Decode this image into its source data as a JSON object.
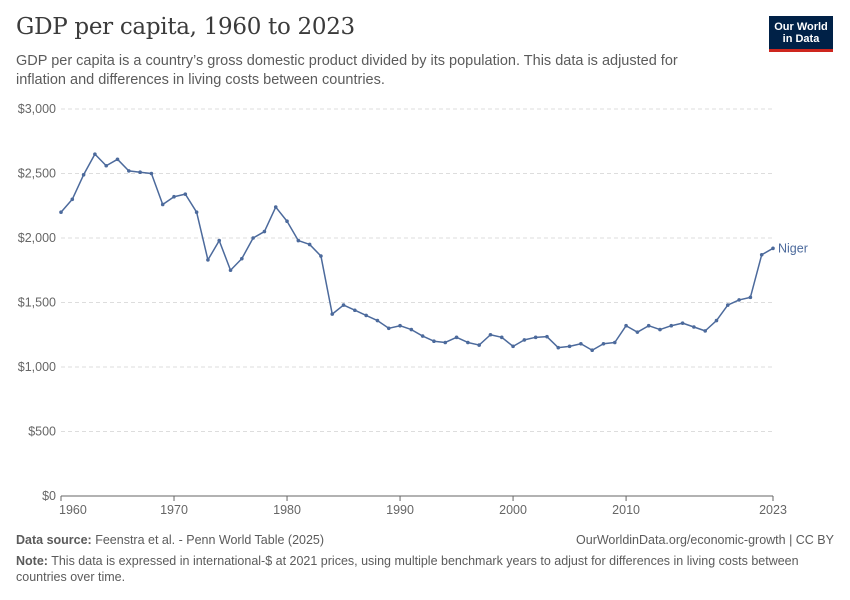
{
  "header": {
    "title": "GDP per capita, 1960 to 2023",
    "subtitle": "GDP per capita is a country’s gross domestic product divided by its population. This data is adjusted for inflation and differences in living costs between countries.",
    "logo_line1": "Our World",
    "logo_line2": "in Data"
  },
  "footer": {
    "source_label": "Data source:",
    "source_text": "Feenstra et al. - Penn World Table (2025)",
    "url": "OurWorldinData.org/economic-growth | CC BY",
    "note_label": "Note:",
    "note_text": "This data is expressed in international-$ at 2021 prices, using multiple benchmark years to adjust for differences in living costs between countries over time."
  },
  "colors": {
    "series": "#4c6a9c",
    "grid": "#dddddd",
    "axis": "#666666"
  },
  "chart_data": {
    "type": "line",
    "title": "GDP per capita, 1960 to 2023",
    "xlabel": "",
    "ylabel": "",
    "xlim": [
      1960,
      2023
    ],
    "ylim": [
      0,
      3000
    ],
    "yticks": [
      0,
      500,
      1000,
      1500,
      2000,
      2500,
      3000
    ],
    "ytick_labels": [
      "$0",
      "$500",
      "$1,000",
      "$1,500",
      "$2,000",
      "$2,500",
      "$3,000"
    ],
    "xticks": [
      1960,
      1970,
      1980,
      1990,
      2000,
      2010,
      2023
    ],
    "xtick_labels": [
      "1960",
      "1970",
      "1980",
      "1990",
      "2000",
      "2010",
      "2023"
    ],
    "grid": "horizontal-dashed",
    "series": [
      {
        "name": "Niger",
        "x": [
          1960,
          1961,
          1962,
          1963,
          1964,
          1965,
          1966,
          1967,
          1968,
          1969,
          1970,
          1971,
          1972,
          1973,
          1974,
          1975,
          1976,
          1977,
          1978,
          1979,
          1980,
          1981,
          1982,
          1983,
          1984,
          1985,
          1986,
          1987,
          1988,
          1989,
          1990,
          1991,
          1992,
          1993,
          1994,
          1995,
          1996,
          1997,
          1998,
          1999,
          2000,
          2001,
          2002,
          2003,
          2004,
          2005,
          2006,
          2007,
          2008,
          2009,
          2010,
          2011,
          2012,
          2013,
          2014,
          2015,
          2016,
          2017,
          2018,
          2019,
          2020,
          2021,
          2022,
          2023
        ],
        "values": [
          2200,
          2300,
          2490,
          2650,
          2560,
          2610,
          2520,
          2510,
          2500,
          2260,
          2320,
          2340,
          2200,
          1830,
          1980,
          1750,
          1840,
          2000,
          2050,
          2240,
          2130,
          1980,
          1950,
          1860,
          1410,
          1480,
          1440,
          1400,
          1360,
          1300,
          1320,
          1290,
          1240,
          1200,
          1190,
          1230,
          1190,
          1170,
          1250,
          1230,
          1160,
          1210,
          1230,
          1235,
          1150,
          1160,
          1180,
          1130,
          1180,
          1190,
          1320,
          1270,
          1320,
          1290,
          1320,
          1340,
          1310,
          1280,
          1360,
          1480,
          1520,
          1540,
          1870,
          1920
        ]
      }
    ]
  }
}
